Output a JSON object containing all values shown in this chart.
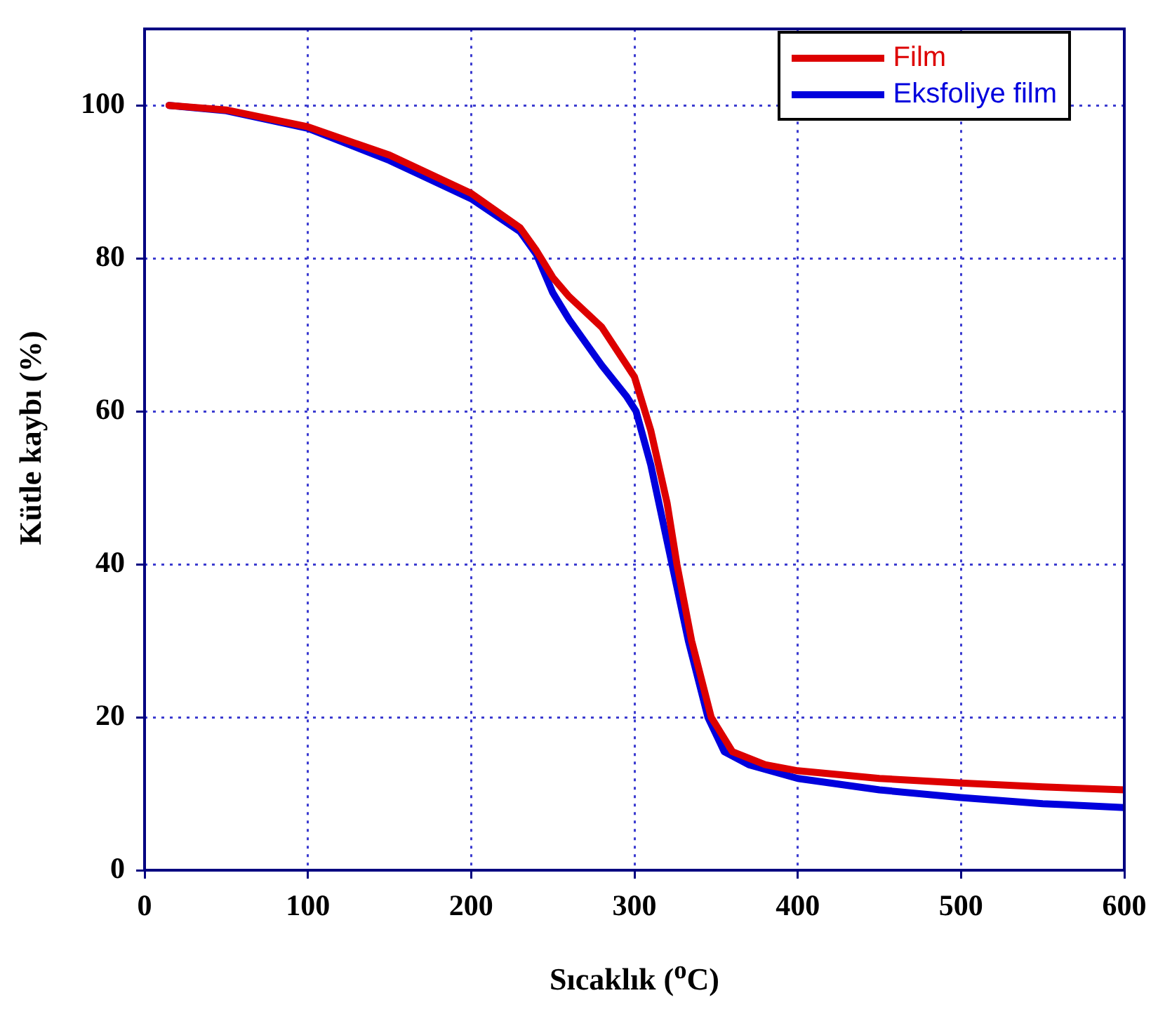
{
  "chart_data": {
    "type": "line",
    "xlabel": "Sıcaklık ($^{o}$C)",
    "ylabel": "Kütle kaybı (%)",
    "xlim": [
      0,
      600
    ],
    "xticks": [
      0,
      100,
      200,
      300,
      400,
      500,
      600
    ],
    "ylim": [
      0,
      110
    ],
    "yticks": [
      0,
      20,
      40,
      60,
      80,
      100
    ],
    "grid": true,
    "legend": "top right",
    "marker": "none",
    "line_style": "solid",
    "series": [
      {
        "name": "Film",
        "color": "#dd0000",
        "x": [
          15,
          50,
          100,
          150,
          200,
          230,
          240,
          250,
          260,
          280,
          300,
          310,
          320,
          326,
          335,
          347,
          360,
          380,
          400,
          450,
          500,
          550,
          600
        ],
        "values": [
          100,
          99.4,
          97.2,
          93.5,
          88.5,
          84,
          81,
          77.5,
          75,
          71,
          64.5,
          57.5,
          48,
          40,
          30,
          20,
          15.5,
          13.8,
          13,
          12,
          11.4,
          10.9,
          10.5
        ]
      },
      {
        "name": "Eksfoliye film",
        "color": "#0000dd",
        "x": [
          15,
          50,
          100,
          150,
          200,
          230,
          240,
          250,
          260,
          280,
          295,
          301,
          310,
          323,
          333,
          345,
          355,
          370,
          400,
          450,
          500,
          550,
          600
        ],
        "values": [
          100,
          99.3,
          97,
          92.8,
          87.8,
          83.5,
          80.5,
          75.5,
          72,
          66,
          62,
          60,
          53,
          40,
          30,
          20,
          15.5,
          13.8,
          12,
          10.5,
          9.5,
          8.7,
          8.2
        ]
      }
    ]
  }
}
